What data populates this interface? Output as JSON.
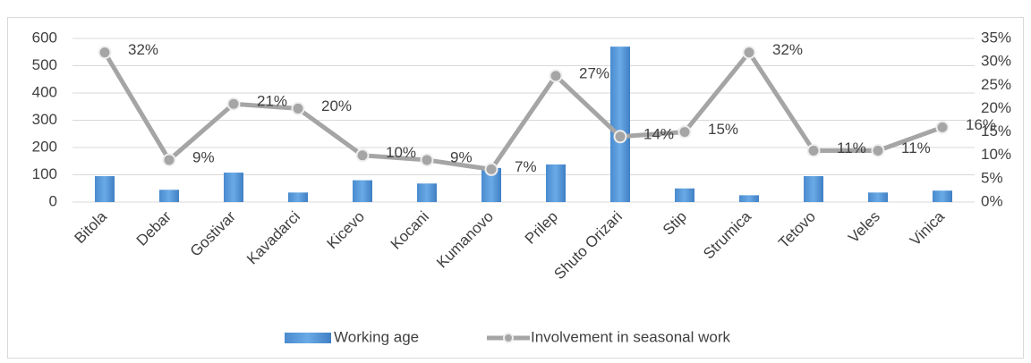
{
  "chart_data": {
    "type": "bar-line",
    "categories": [
      "Bitola",
      "Debar",
      "Gostivar",
      "Kavadarci",
      "Kicevo",
      "Kocani",
      "Kumanovo",
      "Prilep",
      "Shuto Orizari",
      "Stip",
      "Strumica",
      "Tetovo",
      "Veles",
      "Vinica"
    ],
    "series": [
      {
        "name": "Working age",
        "type": "bar",
        "color": "#5b9bd5",
        "values": [
          95,
          45,
          108,
          35,
          80,
          68,
          125,
          138,
          570,
          50,
          25,
          95,
          35,
          42
        ]
      },
      {
        "name": "Involvement in seasonal work",
        "type": "line",
        "axis": "y2",
        "color": "#a5a5a5",
        "values": [
          32,
          9,
          21,
          20,
          10,
          9,
          7,
          27,
          14,
          15,
          32,
          11,
          11,
          16
        ],
        "value_labels": [
          "32%",
          "9%",
          "21%",
          "20%",
          "10%",
          "9%",
          "7%",
          "27%",
          "14%",
          "15%",
          "32%",
          "11%",
          "11%",
          "16%"
        ]
      }
    ],
    "ylim": [
      0,
      600
    ],
    "yticks": [
      0,
      100,
      200,
      300,
      400,
      500,
      600
    ],
    "y2lim": [
      0,
      35
    ],
    "y2ticks": [
      {
        "value": 0,
        "label": "0%"
      },
      {
        "value": 5,
        "label": "5%"
      },
      {
        "value": 10,
        "label": "10%"
      },
      {
        "value": 15,
        "label": "15%"
      },
      {
        "value": 20,
        "label": "20%"
      },
      {
        "value": 25,
        "label": "25%"
      },
      {
        "value": 30,
        "label": "30%"
      },
      {
        "value": 35,
        "label": "35%"
      }
    ],
    "grid": true,
    "legend": "bottom"
  }
}
